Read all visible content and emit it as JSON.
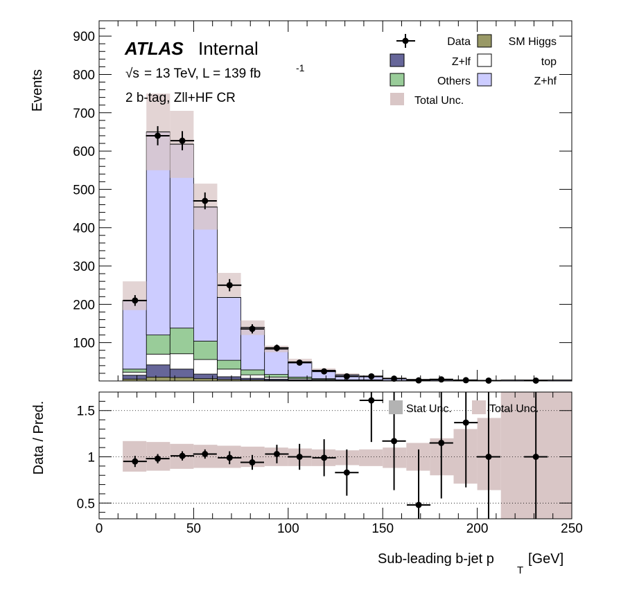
{
  "atlas": {
    "label": "ATLAS",
    "internal": "Internal",
    "energy_line_sqrt": "√s",
    "energy_line_rest": "= 13 TeV, L = 139 fb",
    "lumi_exp": "-1",
    "region": "2 b-tag, Zll+HF CR"
  },
  "legend": {
    "data": "Data",
    "sm_higgs": "SM Higgs",
    "z_lf": "Z+lf",
    "top": "top",
    "others": "Others",
    "z_hf": "Z+hf",
    "total_unc": "Total Unc."
  },
  "ratio_legend": {
    "stat_unc": "Stat Unc.",
    "total_unc": "Total Unc."
  },
  "colors": {
    "z_hf": "#ccccff",
    "others": "#99cc99",
    "top": "#ffffff",
    "z_lf": "#666699",
    "sm_higgs": "#999966",
    "total_unc": "#d9c6c6",
    "stat_unc": "#b3b3b3"
  },
  "chart_data": [
    {
      "type": "bar",
      "stacked": true,
      "xlabel_main": "Sub-leading b-jet p",
      "xlabel_sub": "T",
      "xlabel_unit": "[GeV]",
      "ylabel": "Events",
      "xlim": [
        0,
        250
      ],
      "ylim": [
        0,
        940
      ],
      "x_ticks": [
        0,
        50,
        100,
        150,
        200,
        250
      ],
      "y_ticks": [
        100,
        200,
        300,
        400,
        500,
        600,
        700,
        800,
        900
      ],
      "bin_edges": [
        12.5,
        25,
        37.5,
        50,
        62.5,
        75,
        87.5,
        100,
        112.5,
        125,
        137.5,
        150,
        162.5,
        175,
        187.5,
        200,
        212.5,
        250
      ],
      "series": [
        {
          "name": "SM Higgs",
          "values": [
            5,
            10,
            9,
            6,
            4,
            3,
            2,
            1,
            1,
            0,
            0,
            0,
            0,
            0,
            0,
            0,
            0
          ]
        },
        {
          "name": "Z+lf",
          "values": [
            10,
            32,
            22,
            12,
            7,
            4,
            3,
            2,
            1,
            1,
            1,
            0,
            0,
            0,
            0,
            0,
            0
          ]
        },
        {
          "name": "top",
          "values": [
            8,
            28,
            40,
            38,
            20,
            9,
            5,
            3,
            2,
            1,
            1,
            0.5,
            0.5,
            0.3,
            0.2,
            0.2,
            0.2
          ]
        },
        {
          "name": "Others",
          "values": [
            8,
            50,
            67,
            48,
            23,
            13,
            7,
            4,
            2,
            1,
            1,
            0.5,
            0.5,
            0.3,
            0.2,
            0.2,
            0.2
          ]
        },
        {
          "name": "Z+hf",
          "values": [
            179,
            530,
            480,
            350,
            164,
            111,
            66,
            40,
            22,
            13,
            8,
            6,
            3,
            2,
            1.5,
            1,
            2
          ]
        }
      ],
      "total_unc_band": {
        "name": "Total Unc.",
        "low": [
          185,
          550,
          530,
          395,
          220,
          120,
          75,
          47,
          27,
          16,
          11,
          7,
          4,
          2.6,
          1.9,
          1.4,
          2.4
        ],
        "high": [
          260,
          750,
          705,
          515,
          282,
          158,
          92,
          58,
          33,
          20,
          14,
          9,
          5,
          3.2,
          2.3,
          1.8,
          3
        ]
      },
      "points": {
        "name": "Data",
        "x": [
          19,
          31,
          44,
          56,
          69,
          81,
          94,
          106,
          119,
          131,
          144,
          156,
          169,
          181,
          194,
          206,
          231
        ],
        "y": [
          210,
          640,
          627,
          470,
          250,
          136,
          86,
          48,
          25,
          12,
          12,
          6,
          1.5,
          4,
          2,
          1,
          1
        ],
        "yerr": [
          14,
          25,
          25,
          22,
          16,
          12,
          9,
          7,
          5,
          3.5,
          3.5,
          2.5,
          1.2,
          2,
          1.4,
          1,
          1
        ],
        "xerr": 6.25
      }
    },
    {
      "type": "bar",
      "ylabel": "Data / Pred.",
      "xlim": [
        0,
        250
      ],
      "ylim": [
        0.33,
        1.7
      ],
      "x_ticks": [
        0,
        50,
        100,
        150,
        200,
        250
      ],
      "y_tick_labels": [
        "0.5",
        "1",
        "1.5"
      ],
      "y_ticks": [
        0.5,
        1,
        1.5
      ],
      "bin_edges": [
        12.5,
        25,
        37.5,
        50,
        62.5,
        75,
        87.5,
        100,
        112.5,
        125,
        137.5,
        150,
        162.5,
        175,
        187.5,
        200,
        212.5,
        250
      ],
      "total_unc_band": {
        "low": [
          0.84,
          0.85,
          0.87,
          0.88,
          0.88,
          0.89,
          0.9,
          0.9,
          0.9,
          0.91,
          0.9,
          0.88,
          0.85,
          0.8,
          0.71,
          0.64,
          0.33,
          0.33
        ],
        "high": [
          1.17,
          1.16,
          1.14,
          1.13,
          1.12,
          1.11,
          1.1,
          1.09,
          1.08,
          1.07,
          1.08,
          1.1,
          1.15,
          1.2,
          1.3,
          1.42,
          1.7,
          1.45
        ]
      },
      "points": {
        "x": [
          19,
          31,
          44,
          56,
          69,
          81,
          94,
          106,
          119,
          131,
          144,
          156,
          169,
          181,
          194,
          206,
          231
        ],
        "y": [
          0.95,
          0.98,
          1.01,
          1.03,
          0.99,
          0.94,
          1.03,
          1.0,
          0.99,
          0.83,
          1.61,
          1.17,
          0.48,
          1.15,
          1.37,
          1.0,
          1.0
        ],
        "yerr": [
          0.06,
          0.05,
          0.05,
          0.05,
          0.07,
          0.08,
          0.1,
          0.14,
          0.2,
          0.25,
          0.45,
          0.53,
          0.6,
          0.6,
          0.7,
          1.0,
          1.0
        ],
        "xerr": 6.25
      }
    }
  ]
}
